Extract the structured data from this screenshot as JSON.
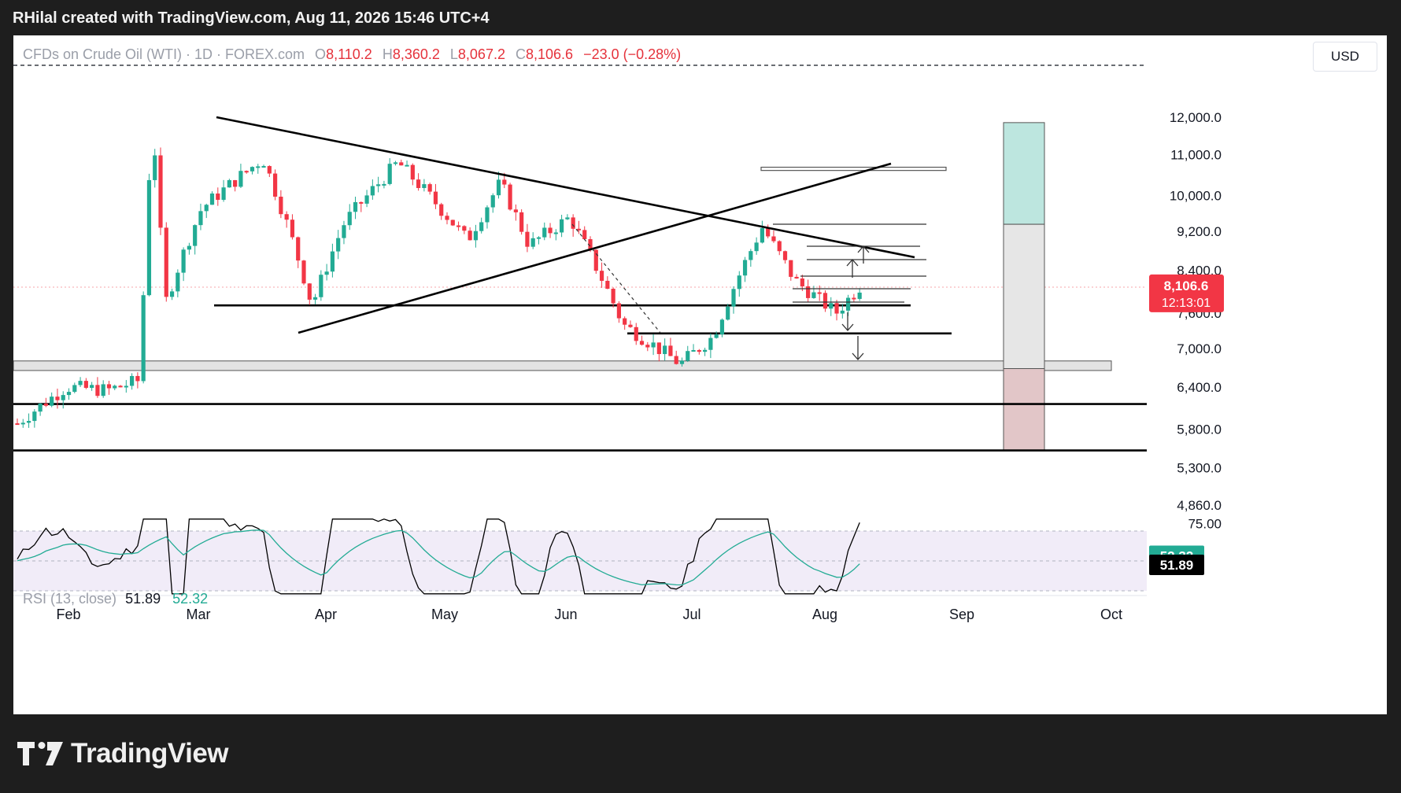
{
  "caption": "RHilal created with TradingView.com, Aug 11, 2026 15:46 UTC+4",
  "legend": {
    "symbol": "CFDs on Crude Oil (WTI) · 1D · FOREX.com",
    "o_label": "O",
    "o_value": "8,110.2",
    "h_label": "H",
    "h_value": "8,360.2",
    "l_label": "L",
    "l_value": "8,067.2",
    "c_label": "C",
    "c_value": "8,106.6",
    "change": "−23.0 (−0.28%)"
  },
  "currency": "USD",
  "price_tag": {
    "price": "8,106.6",
    "countdown": "12:13:01"
  },
  "rsi_legend": {
    "label": "RSI (13, close)",
    "rsi": "51.89",
    "ma": "52.32"
  },
  "rsi_tags": {
    "ma": "52.32",
    "rsi": "51.89"
  },
  "brand": "TradingView",
  "colors": {
    "up": "#22ab94",
    "down": "#f23645",
    "rsi_line": "#000000",
    "rsi_ma": "#22ab94",
    "rsi_band": "#7e57c2"
  },
  "chart_data": {
    "type": "candlestick",
    "price_axis": {
      "scale": "log",
      "ticks": [
        12000,
        11000,
        10000,
        9200,
        8400,
        7600,
        7000,
        6400,
        5800,
        5300,
        4860
      ],
      "tick_labels": [
        "12,000.0",
        "11,000.0",
        "10,000.0",
        "9,200.0",
        "8,400.0",
        "7,600.0",
        "7,000.0",
        "6,400.0",
        "5,800.0",
        "5,300.0",
        "4,860.0"
      ]
    },
    "time_axis": {
      "labels": [
        "Feb",
        "Mar",
        "Apr",
        "May",
        "Jun",
        "Jul",
        "Aug",
        "Sep",
        "Oct"
      ]
    },
    "last_price": 8106.6,
    "rsi_axis": {
      "label": "75.00",
      "upper": 70,
      "middle": 50,
      "lower": 30
    },
    "horizontal_levels": [
      7740,
      7250,
      6150,
      5520
    ],
    "support_zone": [
      6650,
      6800
    ],
    "resistance_box": [
      10600,
      10680
    ],
    "position_tool": {
      "target_top": 11850,
      "entry": 9350,
      "stop_top": 6680,
      "stop_bottom": 5520
    },
    "key_pivots": [
      {
        "date": "Mar 05",
        "price": 11900
      },
      {
        "date": "Mar 10",
        "price": 7740
      },
      {
        "date": "Jun 30",
        "price": 6750
      },
      {
        "date": "Jul 23",
        "price": 9280
      },
      {
        "date": "Aug 11",
        "price": 8106.6
      }
    ]
  }
}
